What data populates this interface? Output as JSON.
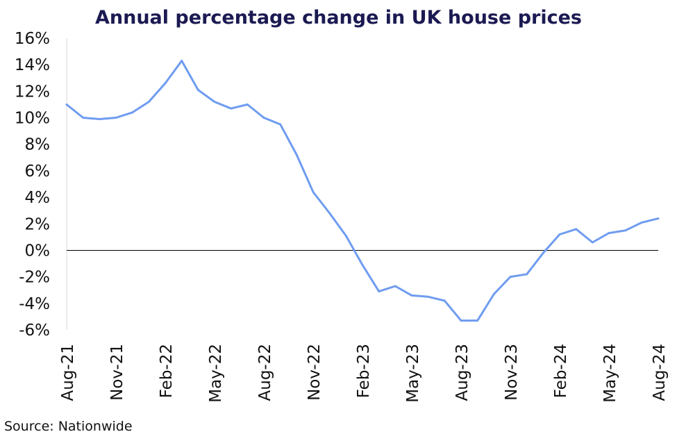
{
  "chart_data": {
    "type": "line",
    "title": "Annual percentage change in UK house prices",
    "source": "Source: Nationwide",
    "xlabel": "",
    "ylabel": "",
    "ylim": [
      -6,
      16
    ],
    "y_ticks": [
      "16%",
      "14%",
      "12%",
      "10%",
      "8%",
      "6%",
      "4%",
      "2%",
      "0%",
      "-2%",
      "-4%",
      "-6%"
    ],
    "y_tick_values": [
      16,
      14,
      12,
      10,
      8,
      6,
      4,
      2,
      0,
      -2,
      -4,
      -6
    ],
    "x_tick_labels": [
      "Aug-21",
      "Nov-21",
      "Feb-22",
      "May-22",
      "Aug-22",
      "Nov-22",
      "Feb-23",
      "May-23",
      "Aug-23",
      "Nov-23",
      "Feb-24",
      "May-24",
      "Aug-24"
    ],
    "grid": false,
    "zero_line": true,
    "line_color": "#6f9cf0",
    "categories": [
      "Aug-21",
      "Sep-21",
      "Oct-21",
      "Nov-21",
      "Dec-21",
      "Jan-22",
      "Feb-22",
      "Mar-22",
      "Apr-22",
      "May-22",
      "Jun-22",
      "Jul-22",
      "Aug-22",
      "Sep-22",
      "Oct-22",
      "Nov-22",
      "Dec-22",
      "Jan-23",
      "Feb-23",
      "Mar-23",
      "Apr-23",
      "May-23",
      "Jun-23",
      "Jul-23",
      "Aug-23",
      "Sep-23",
      "Oct-23",
      "Nov-23",
      "Dec-23",
      "Jan-24",
      "Feb-24",
      "Mar-24",
      "Apr-24",
      "May-24",
      "Jun-24",
      "Jul-24",
      "Aug-24"
    ],
    "series": [
      {
        "values": [
          11.0,
          10.0,
          9.9,
          10.0,
          10.4,
          11.2,
          12.6,
          14.3,
          12.1,
          11.2,
          10.7,
          11.0,
          10.0,
          9.5,
          7.2,
          4.4,
          2.8,
          1.1,
          -1.1,
          -3.1,
          -2.7,
          -3.4,
          -3.5,
          -3.8,
          -5.3,
          -5.3,
          -3.3,
          -2.0,
          -1.8,
          -0.2,
          1.2,
          1.6,
          0.6,
          1.3,
          1.5,
          2.1,
          2.4
        ]
      }
    ]
  }
}
